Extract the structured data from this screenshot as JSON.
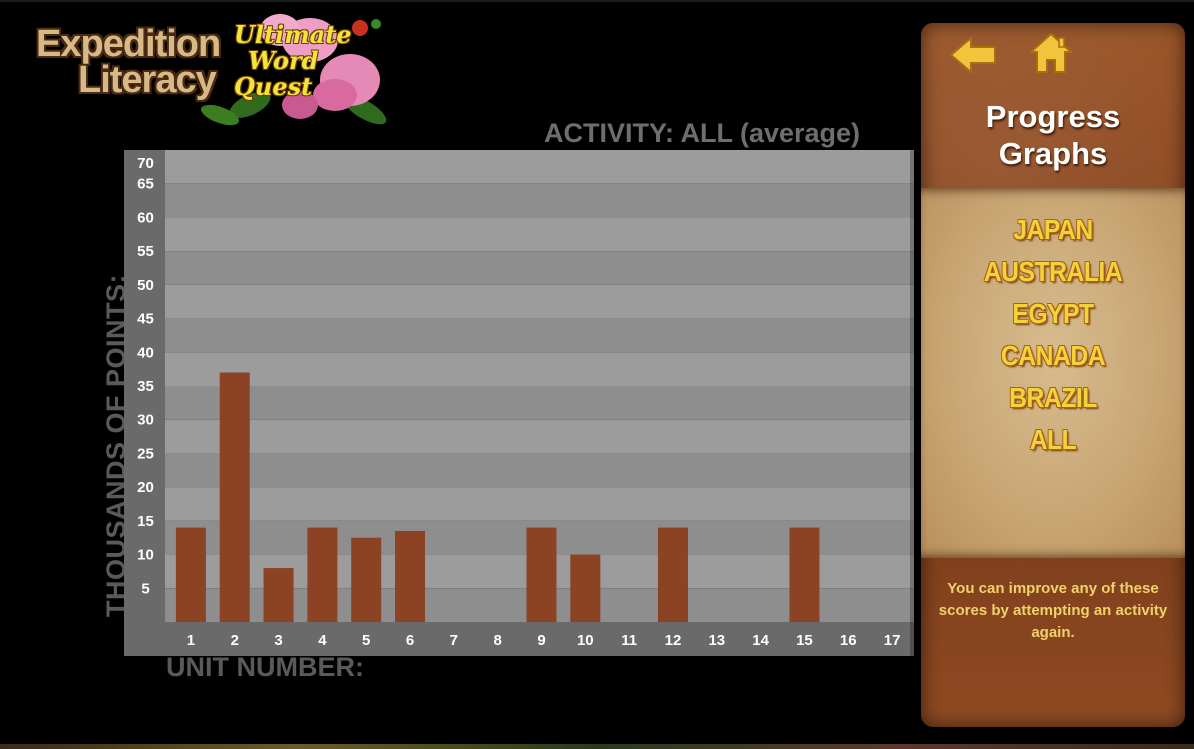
{
  "logo": {
    "line1": "Expedition",
    "line2": "Literacy",
    "sub1": "Ultimate",
    "sub2": "Word",
    "sub3": "Quest"
  },
  "chart_title": "ACTIVITY: ALL (average)",
  "chart_data": {
    "type": "bar",
    "title": "ACTIVITY: ALL (average)",
    "xlabel": "UNIT NUMBER:",
    "ylabel": "THOUSANDS OF POINTS:",
    "categories": [
      "1",
      "2",
      "3",
      "4",
      "5",
      "6",
      "7",
      "8",
      "9",
      "10",
      "11",
      "12",
      "13",
      "14",
      "15",
      "16",
      "17"
    ],
    "values": [
      14,
      37,
      8,
      14,
      12.5,
      13.5,
      0,
      0,
      14,
      10,
      0,
      14,
      0,
      0,
      14,
      0,
      0
    ],
    "y_ticks": [
      5,
      10,
      15,
      20,
      25,
      30,
      35,
      40,
      45,
      50,
      55,
      60,
      65,
      70
    ],
    "ylim": [
      0,
      70
    ],
    "grid": "alternating horizontal bands",
    "colors": {
      "bar": "#8b4323",
      "plot_bg_light": "#9c9c9c",
      "plot_bg_dark": "#8e8e8e",
      "axis_bg": "#6a6a6a"
    }
  },
  "panel": {
    "back_icon": "back-arrow-icon",
    "home_icon": "home-icon",
    "title_line1": "Progress",
    "title_line2": "Graphs",
    "countries": [
      "JAPAN",
      "AUSTRALIA",
      "EGYPT",
      "CANADA",
      "BRAZIL",
      "ALL"
    ],
    "hint": "You can improve any of these scores by attempting an activity again."
  },
  "colors": {
    "accent_gold": "#f3d23c",
    "leather": "#8a4620",
    "parchment": "#d7bc8e"
  }
}
